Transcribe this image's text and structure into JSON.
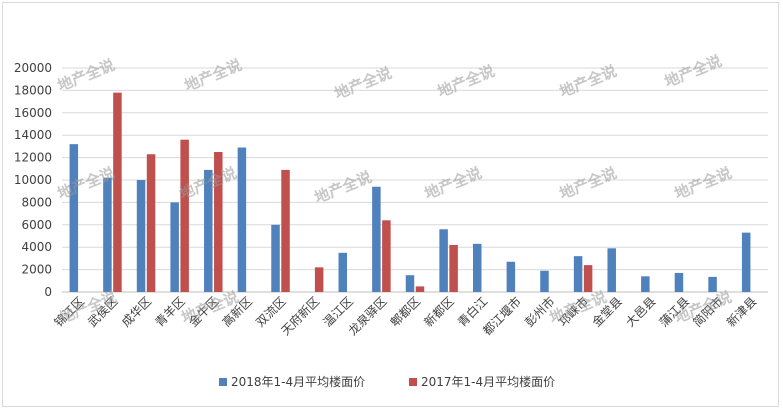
{
  "chart_data": {
    "type": "bar",
    "title": "",
    "xlabel": "",
    "ylabel": "",
    "ylim": [
      0,
      20000
    ],
    "yticks": [
      0,
      2000,
      4000,
      6000,
      8000,
      10000,
      12000,
      14000,
      16000,
      18000,
      20000
    ],
    "grid": true,
    "legend_position": "bottom",
    "categories": [
      "锦江区",
      "武侯区",
      "成华区",
      "青羊区",
      "金牛区",
      "高新区",
      "双流区",
      "天府新区",
      "温江区",
      "龙泉驿区",
      "郫都区",
      "新都区",
      "青白江",
      "都江堰市",
      "彭州市",
      "邛崃市",
      "金堂县",
      "大邑县",
      "蒲江县",
      "简阳市",
      "新津县"
    ],
    "series": [
      {
        "name": "2018年1-4月平均楼面价",
        "color": "#4f81bd",
        "values": [
          13200,
          10200,
          10000,
          8000,
          10900,
          12900,
          6000,
          null,
          3500,
          9400,
          1500,
          5600,
          4300,
          2700,
          1900,
          3200,
          3900,
          1400,
          1700,
          1350,
          5300
        ]
      },
      {
        "name": "2017年1-4月平均楼面价",
        "color": "#c0504d",
        "values": [
          null,
          17800,
          12300,
          13600,
          12500,
          null,
          10900,
          2200,
          null,
          6400,
          500,
          4200,
          null,
          null,
          null,
          2400,
          null,
          null,
          null,
          null,
          null
        ]
      }
    ]
  },
  "watermark": "地产全说"
}
